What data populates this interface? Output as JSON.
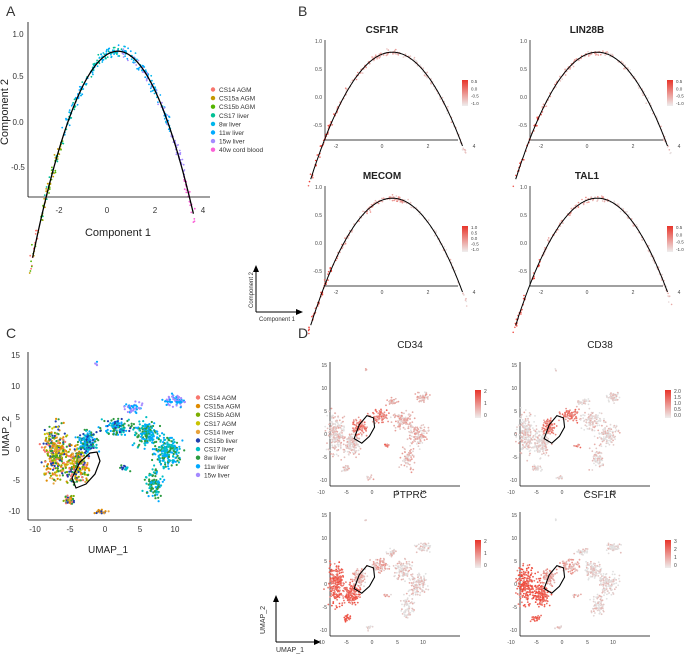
{
  "panels": {
    "A": "A",
    "B": "B",
    "C": "C",
    "D": "D"
  },
  "panelA": {
    "xlabel": "Component 1",
    "ylabel": "Component 2",
    "legend": [
      {
        "label": "CS14 AGM",
        "color": "#f8766d"
      },
      {
        "label": "CS15a AGM",
        "color": "#c49a00"
      },
      {
        "label": "CS15b AGM",
        "color": "#53b400"
      },
      {
        "label": "CS17 liver",
        "color": "#00c094"
      },
      {
        "label": "8w liver",
        "color": "#00b6eb"
      },
      {
        "label": "11w liver",
        "color": "#00a9ff"
      },
      {
        "label": "15w liver",
        "color": "#a58aff"
      },
      {
        "label": "40w cord blood",
        "color": "#fb61d7"
      }
    ]
  },
  "panelB": {
    "axis_x_label": "Component 1",
    "axis_y_label": "Component 2",
    "genes": [
      {
        "name": "CSF1R",
        "ticks": [
          "0.5",
          "0.0",
          "-0.5",
          "-1.0"
        ]
      },
      {
        "name": "LIN28B",
        "ticks": [
          "0.5",
          "0.0",
          "-0.5",
          "-1.0"
        ]
      },
      {
        "name": "MECOM",
        "ticks": [
          "1.0",
          "0.5",
          "0.0",
          "-0.5",
          "-1.0"
        ]
      },
      {
        "name": "TAL1",
        "ticks": [
          "0.5",
          "0.0",
          "-0.5",
          "-1.0"
        ]
      }
    ]
  },
  "panelC": {
    "xlabel": "UMAP_1",
    "ylabel": "UMAP_2",
    "legend": [
      {
        "label": "CS14 AGM",
        "color": "#f8766d"
      },
      {
        "label": "CS15a AGM",
        "color": "#e08b00"
      },
      {
        "label": "CS15b AGM",
        "color": "#7cae00"
      },
      {
        "label": "CS17 AGM",
        "color": "#c9c300"
      },
      {
        "label": "CS14 liver",
        "color": "#e8a33b"
      },
      {
        "label": "CS15b liver",
        "color": "#1f3fae"
      },
      {
        "label": "CS17 liver",
        "color": "#00bfc4"
      },
      {
        "label": "8w liver",
        "color": "#2c9a3f"
      },
      {
        "label": "11w liver",
        "color": "#00a9ff"
      },
      {
        "label": "15w liver",
        "color": "#a58aff"
      }
    ]
  },
  "panelD": {
    "axis_x_label": "UMAP_1",
    "axis_y_label": "UMAP_2",
    "genes": [
      {
        "name": "CD34",
        "ticks": [
          "2",
          "1",
          "0"
        ]
      },
      {
        "name": "CD38",
        "ticks": [
          "2.0",
          "1.5",
          "1.0",
          "0.5",
          "0.0"
        ]
      },
      {
        "name": "PTPRC",
        "ticks": [
          "2",
          "1",
          "0"
        ]
      },
      {
        "name": "CSF1R",
        "ticks": [
          "3",
          "2",
          "1",
          "0"
        ]
      }
    ]
  },
  "ticks": {
    "traj_x": [
      "-2",
      "0",
      "2",
      "4"
    ],
    "traj_y": [
      "1.0",
      "0.5",
      "0.0",
      "-0.5"
    ],
    "umap_x": [
      "-10",
      "-5",
      "0",
      "5",
      "10"
    ],
    "umap_y": [
      "15",
      "10",
      "5",
      "0",
      "-5",
      "-10"
    ]
  }
}
